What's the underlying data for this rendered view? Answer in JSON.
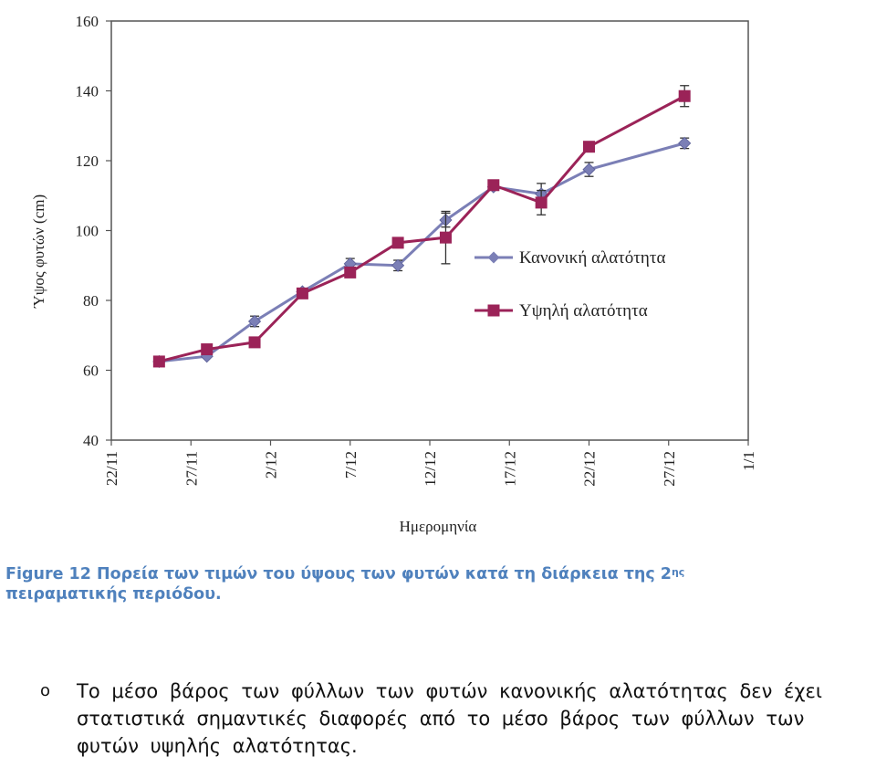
{
  "chart_data": {
    "type": "line",
    "xlabel": "Ημερομηνία",
    "ylabel": "Ύψος φυτών (cm)",
    "ylim": [
      40,
      160
    ],
    "yticks": [
      "40",
      "60",
      "80",
      "100",
      "120",
      "140",
      "160"
    ],
    "xticks": [
      "22/11",
      "27/11",
      "2/12",
      "7/12",
      "12/12",
      "17/12",
      "22/12",
      "27/12",
      "1/1"
    ],
    "legend_position": "right",
    "grid": false,
    "series": [
      {
        "name": "Κανονική αλατότητα",
        "color": "#7b7fb6",
        "marker": "diamond",
        "x": [
          "25/11",
          "28/11",
          "1/12",
          "4/12",
          "7/12",
          "10/12",
          "13/12",
          "16/12",
          "19/12",
          "22/12",
          "28/12"
        ],
        "values": [
          62.5,
          64,
          74,
          82.5,
          90.5,
          90,
          103,
          112.5,
          110.5,
          117.5,
          125
        ],
        "error": [
          0,
          0,
          1.5,
          0,
          1.5,
          1.5,
          2,
          0,
          3,
          2,
          1.5
        ]
      },
      {
        "name": "Υψηλή αλατότητα",
        "color": "#9b2358",
        "marker": "square",
        "x": [
          "25/11",
          "28/11",
          "1/12",
          "4/12",
          "7/12",
          "10/12",
          "13/12",
          "16/12",
          "19/12",
          "22/12",
          "28/12"
        ],
        "values": [
          62.5,
          66,
          68,
          82,
          88,
          96.5,
          98,
          113,
          108,
          124,
          138.5
        ],
        "error": [
          0,
          0,
          0,
          0,
          0,
          0,
          7.5,
          0,
          3.5,
          0,
          3
        ]
      }
    ]
  },
  "caption": {
    "label": "Figure 12",
    "text": "Πορεία των τιμών του ύψους των φυτών κατά τη διάρκεια της 2",
    "superscript": "ης",
    "text_end": "πειραματικής περιόδου."
  },
  "bullet": {
    "marker": "o",
    "text": "Το μέσο βάρος των φύλλων των φυτών κανονικής αλατότητας δεν έχει στατιστικά σημαντικές διαφορές από το μέσο βάρος των φύλλων των φυτών υψηλής αλατότητας."
  }
}
